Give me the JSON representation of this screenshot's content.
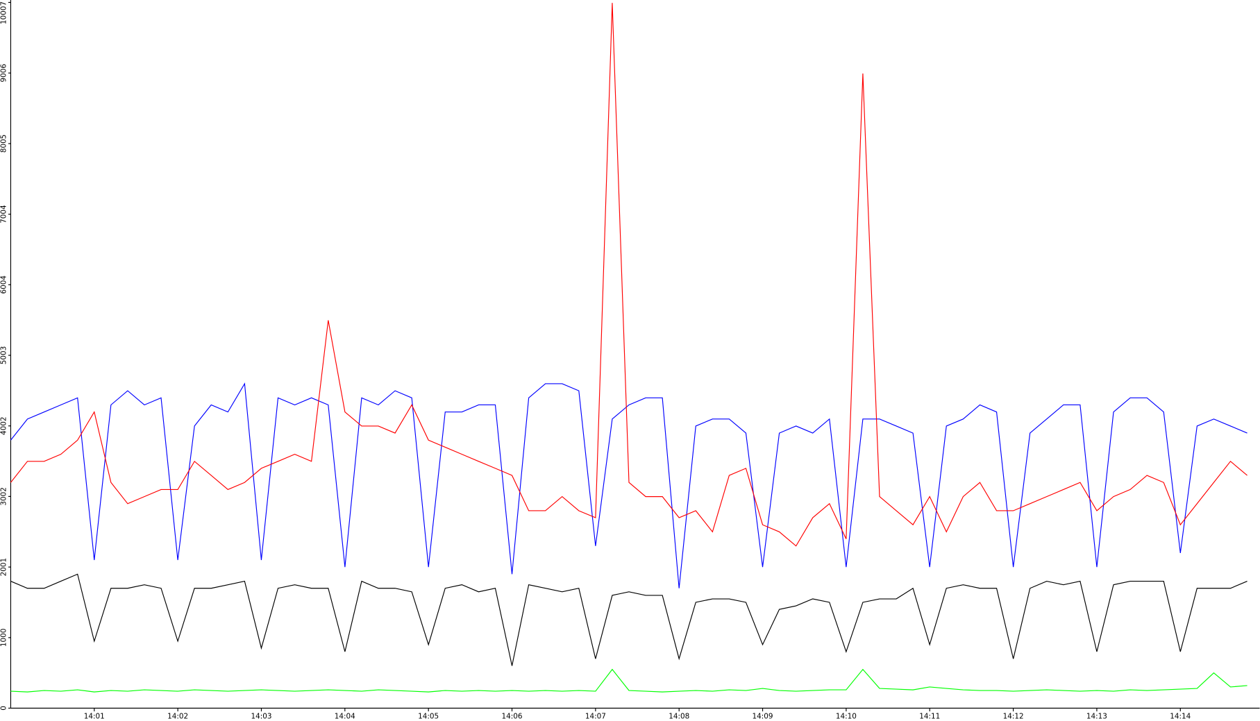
{
  "chart_data": {
    "type": "line",
    "categories": [
      null,
      null,
      null,
      null,
      null,
      "14:01",
      null,
      null,
      null,
      null,
      "14:02",
      null,
      null,
      null,
      null,
      "14:03",
      null,
      null,
      null,
      null,
      "14:04",
      null,
      null,
      null,
      null,
      "14:05",
      null,
      null,
      null,
      null,
      "14:06",
      null,
      null,
      null,
      null,
      "14:07",
      null,
      null,
      null,
      null,
      "14:08",
      null,
      null,
      null,
      null,
      "14:09",
      null,
      null,
      null,
      null,
      "14:10",
      null,
      null,
      null,
      null,
      "14:11",
      null,
      null,
      null,
      null,
      "14:12",
      null,
      null,
      null,
      null,
      "14:13",
      null,
      null,
      null,
      null,
      "14:14",
      null,
      null,
      null,
      null
    ],
    "series": [
      {
        "color": "#000000",
        "values": [
          1800,
          1700,
          1700,
          1800,
          1900,
          950,
          1700,
          1700,
          1750,
          1700,
          950,
          1700,
          1700,
          1750,
          1800,
          850,
          1700,
          1750,
          1700,
          1700,
          800,
          1800,
          1700,
          1700,
          1650,
          900,
          1700,
          1750,
          1650,
          1700,
          600,
          1750,
          1700,
          1650,
          1700,
          700,
          1600,
          1650,
          1600,
          1600,
          700,
          1500,
          1550,
          1550,
          1500,
          900,
          1400,
          1450,
          1550,
          1500,
          800,
          1500,
          1550,
          1550,
          1700,
          900,
          1700,
          1750,
          1700,
          1700,
          700,
          1700,
          1800,
          1750,
          1800,
          800,
          1750,
          1800,
          1800,
          1800,
          800,
          1700,
          1700,
          1700,
          1800
        ]
      },
      {
        "color": "#0000ff",
        "values": [
          3800,
          4100,
          4200,
          4300,
          4400,
          2100,
          4300,
          4500,
          4300,
          4400,
          2100,
          4000,
          4300,
          4200,
          4600,
          2100,
          4400,
          4300,
          4400,
          4300,
          2000,
          4400,
          4300,
          4500,
          4400,
          2000,
          4200,
          4200,
          4300,
          4300,
          1900,
          4400,
          4600,
          4600,
          4500,
          2300,
          4100,
          4300,
          4400,
          4400,
          1700,
          4000,
          4100,
          4100,
          3900,
          2000,
          3900,
          4000,
          3900,
          4100,
          2000,
          4100,
          4100,
          4000,
          3900,
          2000,
          4000,
          4100,
          4300,
          4200,
          2000,
          3900,
          4100,
          4300,
          4300,
          2000,
          4200,
          4400,
          4400,
          4200,
          2200,
          4000,
          4100,
          4000,
          3900
        ]
      },
      {
        "color": "#ff0000",
        "values": [
          3200,
          3500,
          3500,
          3600,
          3800,
          4200,
          3200,
          2900,
          3000,
          3100,
          3100,
          3500,
          3300,
          3100,
          3200,
          3400,
          3500,
          3600,
          3500,
          5500,
          4200,
          4000,
          4000,
          3900,
          4300,
          3800,
          3700,
          3600,
          3500,
          3400,
          3300,
          2800,
          2800,
          3000,
          2800,
          2700,
          10000,
          3200,
          3000,
          3000,
          2700,
          2800,
          2500,
          3300,
          3400,
          2600,
          2500,
          2300,
          2700,
          2900,
          2400,
          9000,
          3000,
          2800,
          2600,
          3000,
          2500,
          3000,
          3200,
          2800,
          2800,
          2900,
          3000,
          3100,
          3200,
          2800,
          3000,
          3100,
          3300,
          3200,
          2600,
          2900,
          3200,
          3500,
          3300
        ]
      },
      {
        "color": "#00ff00",
        "values": [
          240,
          230,
          250,
          240,
          260,
          230,
          250,
          240,
          260,
          250,
          240,
          260,
          250,
          240,
          250,
          260,
          250,
          240,
          250,
          260,
          250,
          240,
          260,
          250,
          240,
          230,
          250,
          240,
          250,
          240,
          250,
          240,
          250,
          240,
          250,
          240,
          550,
          250,
          240,
          230,
          240,
          250,
          240,
          260,
          250,
          280,
          250,
          240,
          250,
          260,
          260,
          550,
          280,
          270,
          260,
          300,
          280,
          260,
          250,
          250,
          240,
          250,
          260,
          250,
          240,
          250,
          240,
          260,
          250,
          260,
          270,
          280,
          500,
          300,
          320
        ]
      }
    ],
    "ylim": [
      0,
      10007
    ],
    "yticks": [
      0,
      1000,
      2001,
      3002,
      4002,
      5003,
      6004,
      7004,
      8005,
      9006,
      10007
    ]
  }
}
